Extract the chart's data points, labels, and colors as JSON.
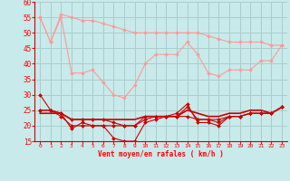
{
  "xlabel": "Vent moyen/en rafales ( km/h )",
  "xlim": [
    -0.5,
    23.5
  ],
  "ylim": [
    15,
    60
  ],
  "yticks": [
    15,
    20,
    25,
    30,
    35,
    40,
    45,
    50,
    55,
    60
  ],
  "xticks": [
    0,
    1,
    2,
    3,
    4,
    5,
    6,
    7,
    8,
    9,
    10,
    11,
    12,
    13,
    14,
    15,
    16,
    17,
    18,
    19,
    20,
    21,
    22,
    23
  ],
  "bg_color": "#c8eaea",
  "grid_color": "#aacccc",
  "lines": [
    {
      "x": [
        0,
        1,
        2,
        3,
        4,
        5,
        6,
        7,
        8,
        9,
        10,
        11,
        12,
        13,
        14,
        15,
        16,
        17,
        18,
        19,
        20,
        21,
        22,
        23
      ],
      "y": [
        55,
        47,
        56,
        55,
        54,
        54,
        53,
        52,
        51,
        50,
        50,
        50,
        50,
        50,
        50,
        50,
        49,
        48,
        47,
        47,
        47,
        47,
        46,
        46
      ],
      "color": "#ff9999",
      "marker": "D",
      "lw": 0.8,
      "ms": 2.0
    },
    {
      "x": [
        0,
        1,
        2,
        3,
        4,
        5,
        6,
        7,
        8,
        9,
        10,
        11,
        12,
        13,
        14,
        15,
        16,
        17,
        18,
        19,
        20,
        21,
        22,
        23
      ],
      "y": [
        55,
        47,
        55,
        37,
        37,
        38,
        34,
        30,
        29,
        33,
        40,
        43,
        43,
        43,
        47,
        43,
        37,
        36,
        38,
        38,
        38,
        41,
        41,
        46
      ],
      "color": "#ff9999",
      "marker": "D",
      "lw": 0.8,
      "ms": 2.0
    },
    {
      "x": [
        0,
        1,
        2,
        3,
        4,
        5,
        6,
        7,
        8,
        9,
        10,
        11,
        12,
        13,
        14,
        15,
        16,
        17,
        18,
        19,
        20,
        21,
        22,
        23
      ],
      "y": [
        30,
        25,
        24,
        19,
        21,
        20,
        20,
        16,
        15,
        15,
        21,
        22,
        23,
        24,
        27,
        21,
        21,
        20,
        23,
        23,
        24,
        24,
        24,
        26
      ],
      "color": "#cc0000",
      "marker": "D",
      "lw": 0.8,
      "ms": 2.0
    },
    {
      "x": [
        0,
        1,
        2,
        3,
        4,
        5,
        6,
        7,
        8,
        9,
        10,
        11,
        12,
        13,
        14,
        15,
        16,
        17,
        18,
        19,
        20,
        21,
        22,
        23
      ],
      "y": [
        25,
        25,
        23,
        20,
        20,
        20,
        20,
        20,
        20,
        20,
        22,
        23,
        23,
        23,
        26,
        22,
        22,
        21,
        23,
        23,
        24,
        24,
        24,
        26
      ],
      "color": "#cc0000",
      "marker": "D",
      "lw": 0.8,
      "ms": 2.0
    },
    {
      "x": [
        0,
        1,
        2,
        3,
        4,
        5,
        6,
        7,
        8,
        9,
        10,
        11,
        12,
        13,
        14,
        15,
        16,
        17,
        18,
        19,
        20,
        21,
        22,
        23
      ],
      "y": [
        25,
        25,
        24,
        22,
        22,
        22,
        22,
        21,
        20,
        20,
        23,
        23,
        23,
        23,
        23,
        22,
        22,
        22,
        23,
        23,
        24,
        24,
        24,
        26
      ],
      "color": "#cc0000",
      "marker": "D",
      "lw": 0.8,
      "ms": 2.0
    },
    {
      "x": [
        0,
        1,
        2,
        3,
        4,
        5,
        6,
        7,
        8,
        9,
        10,
        11,
        12,
        13,
        14,
        15,
        16,
        17,
        18,
        19,
        20,
        21,
        22,
        23
      ],
      "y": [
        24,
        24,
        24,
        22,
        22,
        22,
        22,
        22,
        22,
        22,
        23,
        23,
        23,
        23,
        25,
        24,
        23,
        23,
        24,
        24,
        25,
        25,
        24,
        26
      ],
      "color": "#cc0000",
      "marker": null,
      "lw": 1.2,
      "ms": 0
    }
  ]
}
